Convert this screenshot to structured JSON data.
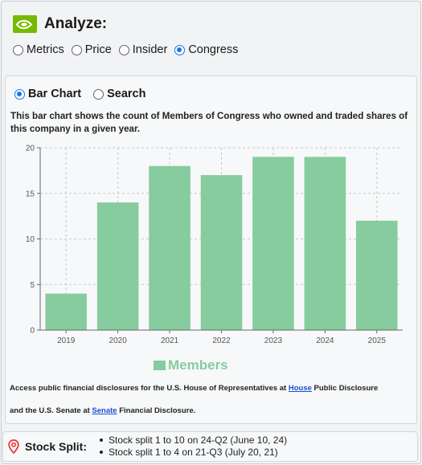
{
  "header": {
    "title": "Analyze:"
  },
  "views": {
    "options": [
      "Metrics",
      "Price",
      "Insider",
      "Congress"
    ],
    "selected": "Congress"
  },
  "panel": {
    "modes": [
      "Bar Chart",
      "Search"
    ],
    "selected_mode": "Bar Chart",
    "description": "This bar chart shows the count of Members of Congress who owned and traded shares of this company in a given year."
  },
  "chart_data": {
    "type": "bar",
    "categories": [
      "2019",
      "2020",
      "2021",
      "2022",
      "2023",
      "2024",
      "2025"
    ],
    "series": [
      {
        "name": "Members",
        "values": [
          4,
          14,
          18,
          17,
          19,
          19,
          12
        ]
      }
    ],
    "ylim": [
      0,
      20
    ],
    "yticks": [
      0,
      5,
      10,
      15,
      20
    ],
    "grid": true,
    "legend": "bottom",
    "bar_color": "#86cc9e"
  },
  "disclosure": {
    "house_prefix": "Access public financial disclosures for the U.S. House of Representatives at",
    "house_link": "House",
    "house_suffix": "Public Disclosure",
    "senate_prefix": "and the U.S. Senate at",
    "senate_link": "Senate",
    "senate_suffix": "Financial Disclosure."
  },
  "stock_split": {
    "label": "Stock Split:",
    "items": [
      "Stock split 1 to 10 on 24-Q2 (June 10, 24)",
      "Stock split 1 to 4 on 21-Q3 (July 20, 21)"
    ]
  },
  "colors": {
    "accent": "#1a73e8",
    "brand": "#76b900",
    "link": "#1a4fd6",
    "pin": "#e53935"
  }
}
